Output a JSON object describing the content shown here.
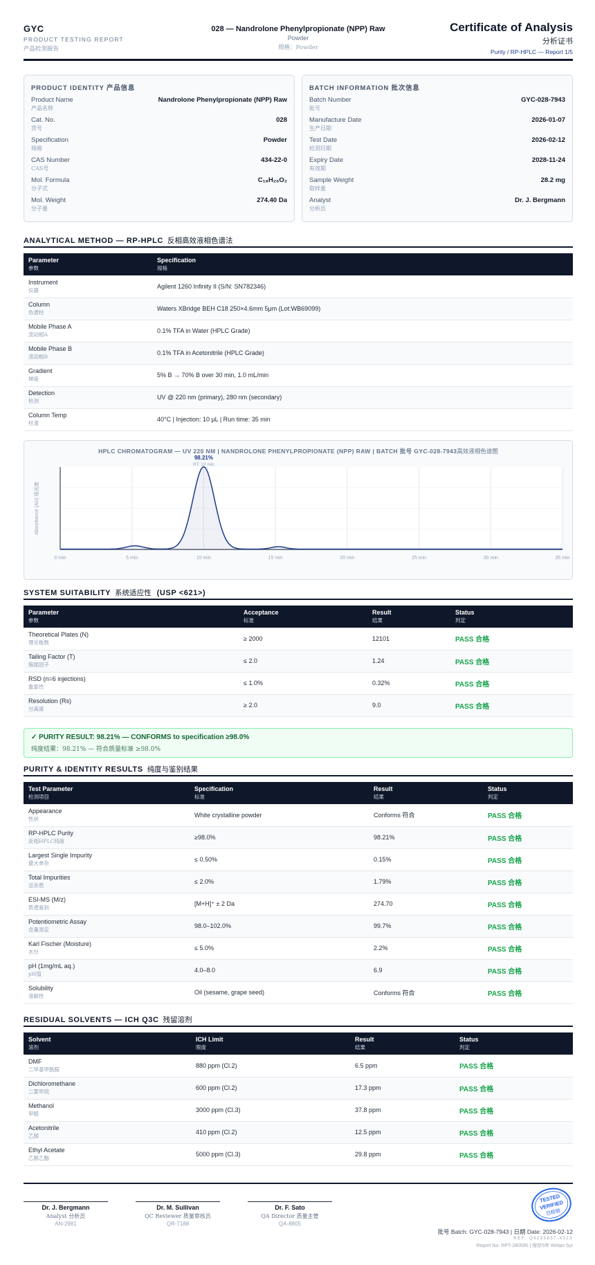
{
  "header": {
    "brand": "GYC",
    "brand_sub": "PRODUCT TESTING REPORT",
    "brand_sub_cn": "产品检测报告",
    "title": "028 — Nandrolone Phenylpropionate (NPP) Raw",
    "form": "Powder",
    "form_cn": "规格：Powder",
    "cert_title": "Certificate of Analysis",
    "cert_cn": "分析证书",
    "cert_sub": "Purity / RP-HPLC — Report 1/5"
  },
  "identity": {
    "title": "PRODUCT IDENTITY 产品信息",
    "rows": [
      {
        "label": "Product Name",
        "label_cn": "产品名称",
        "value": "Nandrolone Phenylpropionate (NPP) Raw"
      },
      {
        "label": "Cat. No.",
        "label_cn": "货号",
        "value": "028"
      },
      {
        "label": "Specification",
        "label_cn": "规格",
        "value": "Powder"
      },
      {
        "label": "CAS Number",
        "label_cn": "CAS号",
        "value": "434-22-0"
      },
      {
        "label": "Mol. Formula",
        "label_cn": "分子式",
        "value": "C₁₈H₂₆O₂"
      },
      {
        "label": "Mol. Weight",
        "label_cn": "分子量",
        "value": "274.40 Da"
      }
    ]
  },
  "batch": {
    "title": "BATCH INFORMATION 批次信息",
    "rows": [
      {
        "label": "Batch Number",
        "label_cn": "批号",
        "value": "GYC-028-7943"
      },
      {
        "label": "Manufacture Date",
        "label_cn": "生产日期",
        "value": "2026-01-07"
      },
      {
        "label": "Test Date",
        "label_cn": "检测日期",
        "value": "2026-02-12"
      },
      {
        "label": "Expiry Date",
        "label_cn": "有效期",
        "value": "2028-11-24"
      },
      {
        "label": "Sample Weight",
        "label_cn": "取样量",
        "value": "28.2 mg"
      },
      {
        "label": "Analyst",
        "label_cn": "分析员",
        "value": "Dr. J. Bergmann"
      }
    ]
  },
  "method": {
    "title": "ANALYTICAL METHOD — RP-HPLC",
    "title_cn": "反相高效液相色谱法",
    "headers": [
      {
        "en": "Parameter",
        "cn": "参数"
      },
      {
        "en": "Specification",
        "cn": "规格"
      }
    ],
    "rows": [
      {
        "param": "Instrument",
        "param_cn": "仪器",
        "spec": "Agilent 1260 Infinity II (S/N: SN782346)"
      },
      {
        "param": "Column",
        "param_cn": "色谱柱",
        "spec": "Waters XBridge BEH C18 250×4.6mm 5μm (Lot:WB69099)"
      },
      {
        "param": "Mobile Phase A",
        "param_cn": "流动相A",
        "spec": "0.1% TFA in Water (HPLC Grade)"
      },
      {
        "param": "Mobile Phase B",
        "param_cn": "流动相B",
        "spec": "0.1% TFA in Acetonitrile (HPLC Grade)"
      },
      {
        "param": "Gradient",
        "param_cn": "梯度",
        "spec": "5% B → 70% B over 30 min, 1.0 mL/min"
      },
      {
        "param": "Detection",
        "param_cn": "检测",
        "spec": "UV @ 220 nm (primary), 280 nm (secondary)"
      },
      {
        "param": "Column Temp",
        "param_cn": "柱温",
        "spec": "40°C | Injection: 10 μL | Run time: 35 min"
      }
    ]
  },
  "chart_data": {
    "type": "line",
    "title": "HPLC CHROMATOGRAM — UV 220 NM | NANDROLONE PHENYLPROPIONATE (NPP) RAW | BATCH 批号 GYC-028-7943",
    "title_cn": "高效液相色谱图",
    "xlabel": "",
    "ylabel": "Absorbance (AU) 吸光度",
    "xlim": [
      0,
      35
    ],
    "ylim": [
      0,
      100
    ],
    "x_ticks": [
      "0 min",
      "5 min",
      "10 min",
      "15 min",
      "20 min",
      "25 min",
      "30 min",
      "35 min"
    ],
    "peak_label": "98.21%",
    "peak_rt_label": "RT: 10 min",
    "grid": true,
    "peaks": [
      {
        "rt": 5.2,
        "height": 4,
        "width": 0.6
      },
      {
        "rt": 10.0,
        "height": 100,
        "width": 0.75
      },
      {
        "rt": 15.2,
        "height": 3,
        "width": 0.5
      }
    ],
    "color": "#1e3a8a"
  },
  "suitability": {
    "title": "SYSTEM SUITABILITY",
    "title_cn": "系统适应性",
    "title_suffix": "(USP <621>)",
    "headers": [
      {
        "en": "Parameter",
        "cn": "参数"
      },
      {
        "en": "Acceptance",
        "cn": "标准"
      },
      {
        "en": "Result",
        "cn": "结果"
      },
      {
        "en": "Status",
        "cn": "判定"
      }
    ],
    "rows": [
      {
        "param": "Theoretical Plates (N)",
        "param_cn": "理论板数",
        "acc": "≥ 2000",
        "result": "12101",
        "status": "PASS 合格"
      },
      {
        "param": "Tailing Factor (T)",
        "param_cn": "拖尾因子",
        "acc": "≤ 2.0",
        "result": "1.24",
        "status": "PASS 合格"
      },
      {
        "param": "RSD (n=6 injections)",
        "param_cn": "重复性",
        "acc": "≤ 1.0%",
        "result": "0.32%",
        "status": "PASS 合格"
      },
      {
        "param": "Resolution (Rs)",
        "param_cn": "分离度",
        "acc": "≥ 2.0",
        "result": "9.0",
        "status": "PASS 合格"
      }
    ]
  },
  "purity_banner": {
    "main": "✓ PURITY RESULT: 98.21% — CONFORMS to specification ≥98.0%",
    "cn": "纯度结果：98.21% — 符合质量标准 ≥98.0%"
  },
  "results": {
    "title": "PURITY & IDENTITY RESULTS",
    "title_cn": "纯度与鉴别结果",
    "headers": [
      {
        "en": "Test Parameter",
        "cn": "检测项目"
      },
      {
        "en": "Specification",
        "cn": "标准"
      },
      {
        "en": "Result",
        "cn": "结果"
      },
      {
        "en": "Status",
        "cn": "判定"
      }
    ],
    "rows": [
      {
        "param": "Appearance",
        "param_cn": "性状",
        "spec": "White crystalline powder",
        "result": "Conforms 符合",
        "status": "PASS 合格"
      },
      {
        "param": "RP-HPLC Purity",
        "param_cn": "反相HPLC纯度",
        "spec": "≥98.0%",
        "result": "98.21%",
        "status": "PASS 合格"
      },
      {
        "param": "Largest Single Impurity",
        "param_cn": "最大单杂",
        "spec": "≤ 0.50%",
        "result": "0.15%",
        "status": "PASS 合格"
      },
      {
        "param": "Total Impurities",
        "param_cn": "总杂质",
        "spec": "≤ 2.0%",
        "result": "1.79%",
        "status": "PASS 合格"
      },
      {
        "param": "ESI-MS (M/z)",
        "param_cn": "质谱鉴别",
        "spec": "[M+H]⁺ ± 2 Da",
        "result": "274.70",
        "status": "PASS 合格"
      },
      {
        "param": "Potentiometric Assay",
        "param_cn": "含量测定",
        "spec": "98.0–102.0%",
        "result": "99.7%",
        "status": "PASS 合格"
      },
      {
        "param": "Karl Fischer (Moisture)",
        "param_cn": "水分",
        "spec": "≤ 5.0%",
        "result": "2.2%",
        "status": "PASS 合格"
      },
      {
        "param": "pH (1mg/mL aq.)",
        "param_cn": "pH值",
        "spec": "4.0–8.0",
        "result": "6.9",
        "status": "PASS 合格"
      },
      {
        "param": "Solubility",
        "param_cn": "溶解性",
        "spec": "Oil (sesame, grape seed)",
        "result": "Conforms 符合",
        "status": "PASS 合格"
      }
    ]
  },
  "solvents": {
    "title": "RESIDUAL SOLVENTS — ICH Q3C",
    "title_cn": "残留溶剂",
    "headers": [
      {
        "en": "Solvent",
        "cn": "溶剂"
      },
      {
        "en": "ICH Limit",
        "cn": "限度"
      },
      {
        "en": "Result",
        "cn": "结果"
      },
      {
        "en": "Status",
        "cn": "判定"
      }
    ],
    "rows": [
      {
        "name": "DMF",
        "name_cn": "二甲基甲酰胺",
        "limit": "880 ppm (Cl.2)",
        "result": "6.5 ppm",
        "status": "PASS 合格"
      },
      {
        "name": "Dichloromethane",
        "name_cn": "二氯甲烷",
        "limit": "600 ppm (Cl.2)",
        "result": "17.3 ppm",
        "status": "PASS 合格"
      },
      {
        "name": "Methanol",
        "name_cn": "甲醇",
        "limit": "3000 ppm (Cl.3)",
        "result": "37.8 ppm",
        "status": "PASS 合格"
      },
      {
        "name": "Acetonitrile",
        "name_cn": "乙腈",
        "limit": "410 ppm (Cl.2)",
        "result": "12.5 ppm",
        "status": "PASS 合格"
      },
      {
        "name": "Ethyl Acetate",
        "name_cn": "乙酸乙酯",
        "limit": "5000 ppm (Cl.3)",
        "result": "29.8 ppm",
        "status": "PASS 合格"
      }
    ]
  },
  "signatures": [
    {
      "name": "Dr. J. Bergmann",
      "role": "Analyst 分析员",
      "id": "AN-2981"
    },
    {
      "name": "Dr. M. Sullivan",
      "role": "QC Reviewer 质量审核员",
      "id": "QR-7188"
    },
    {
      "name": "Dr. F. Sato",
      "role": "QA Director 质量主管",
      "id": "QA-8805"
    }
  ],
  "stamp": {
    "line1": "TESTED",
    "line2": "VERIFIED",
    "line3": "已检验",
    "color": "#2563eb"
  },
  "footer": {
    "batch_line": "批号 Batch: GYC-028-7943 | 日期 Date: 2026-02-12",
    "ref_line": "REF: Q9285857-4323",
    "report_line": "Report No: RPT-280590 | 保存5年 Retain 5yr"
  }
}
